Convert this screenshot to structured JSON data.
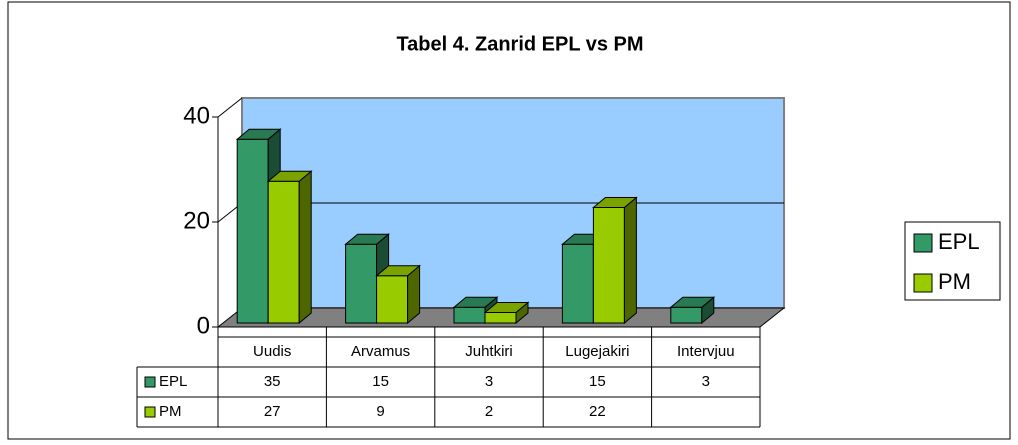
{
  "chart_data": {
    "type": "bar3d",
    "title": "Tabel 4. Zanrid EPL vs PM",
    "categories": [
      "Uudis",
      "Arvamus",
      "Juhtkiri",
      "Lugejakiri",
      "Intervjuu"
    ],
    "series": [
      {
        "name": "EPL",
        "color": "#339966",
        "values": [
          35,
          15,
          3,
          15,
          3
        ]
      },
      {
        "name": "PM",
        "color": "#99cc00",
        "values": [
          27,
          9,
          2,
          22,
          null
        ]
      }
    ],
    "ylim": [
      0,
      40
    ],
    "yticks": [
      0,
      20,
      40
    ],
    "grid": true,
    "legend": "right"
  }
}
